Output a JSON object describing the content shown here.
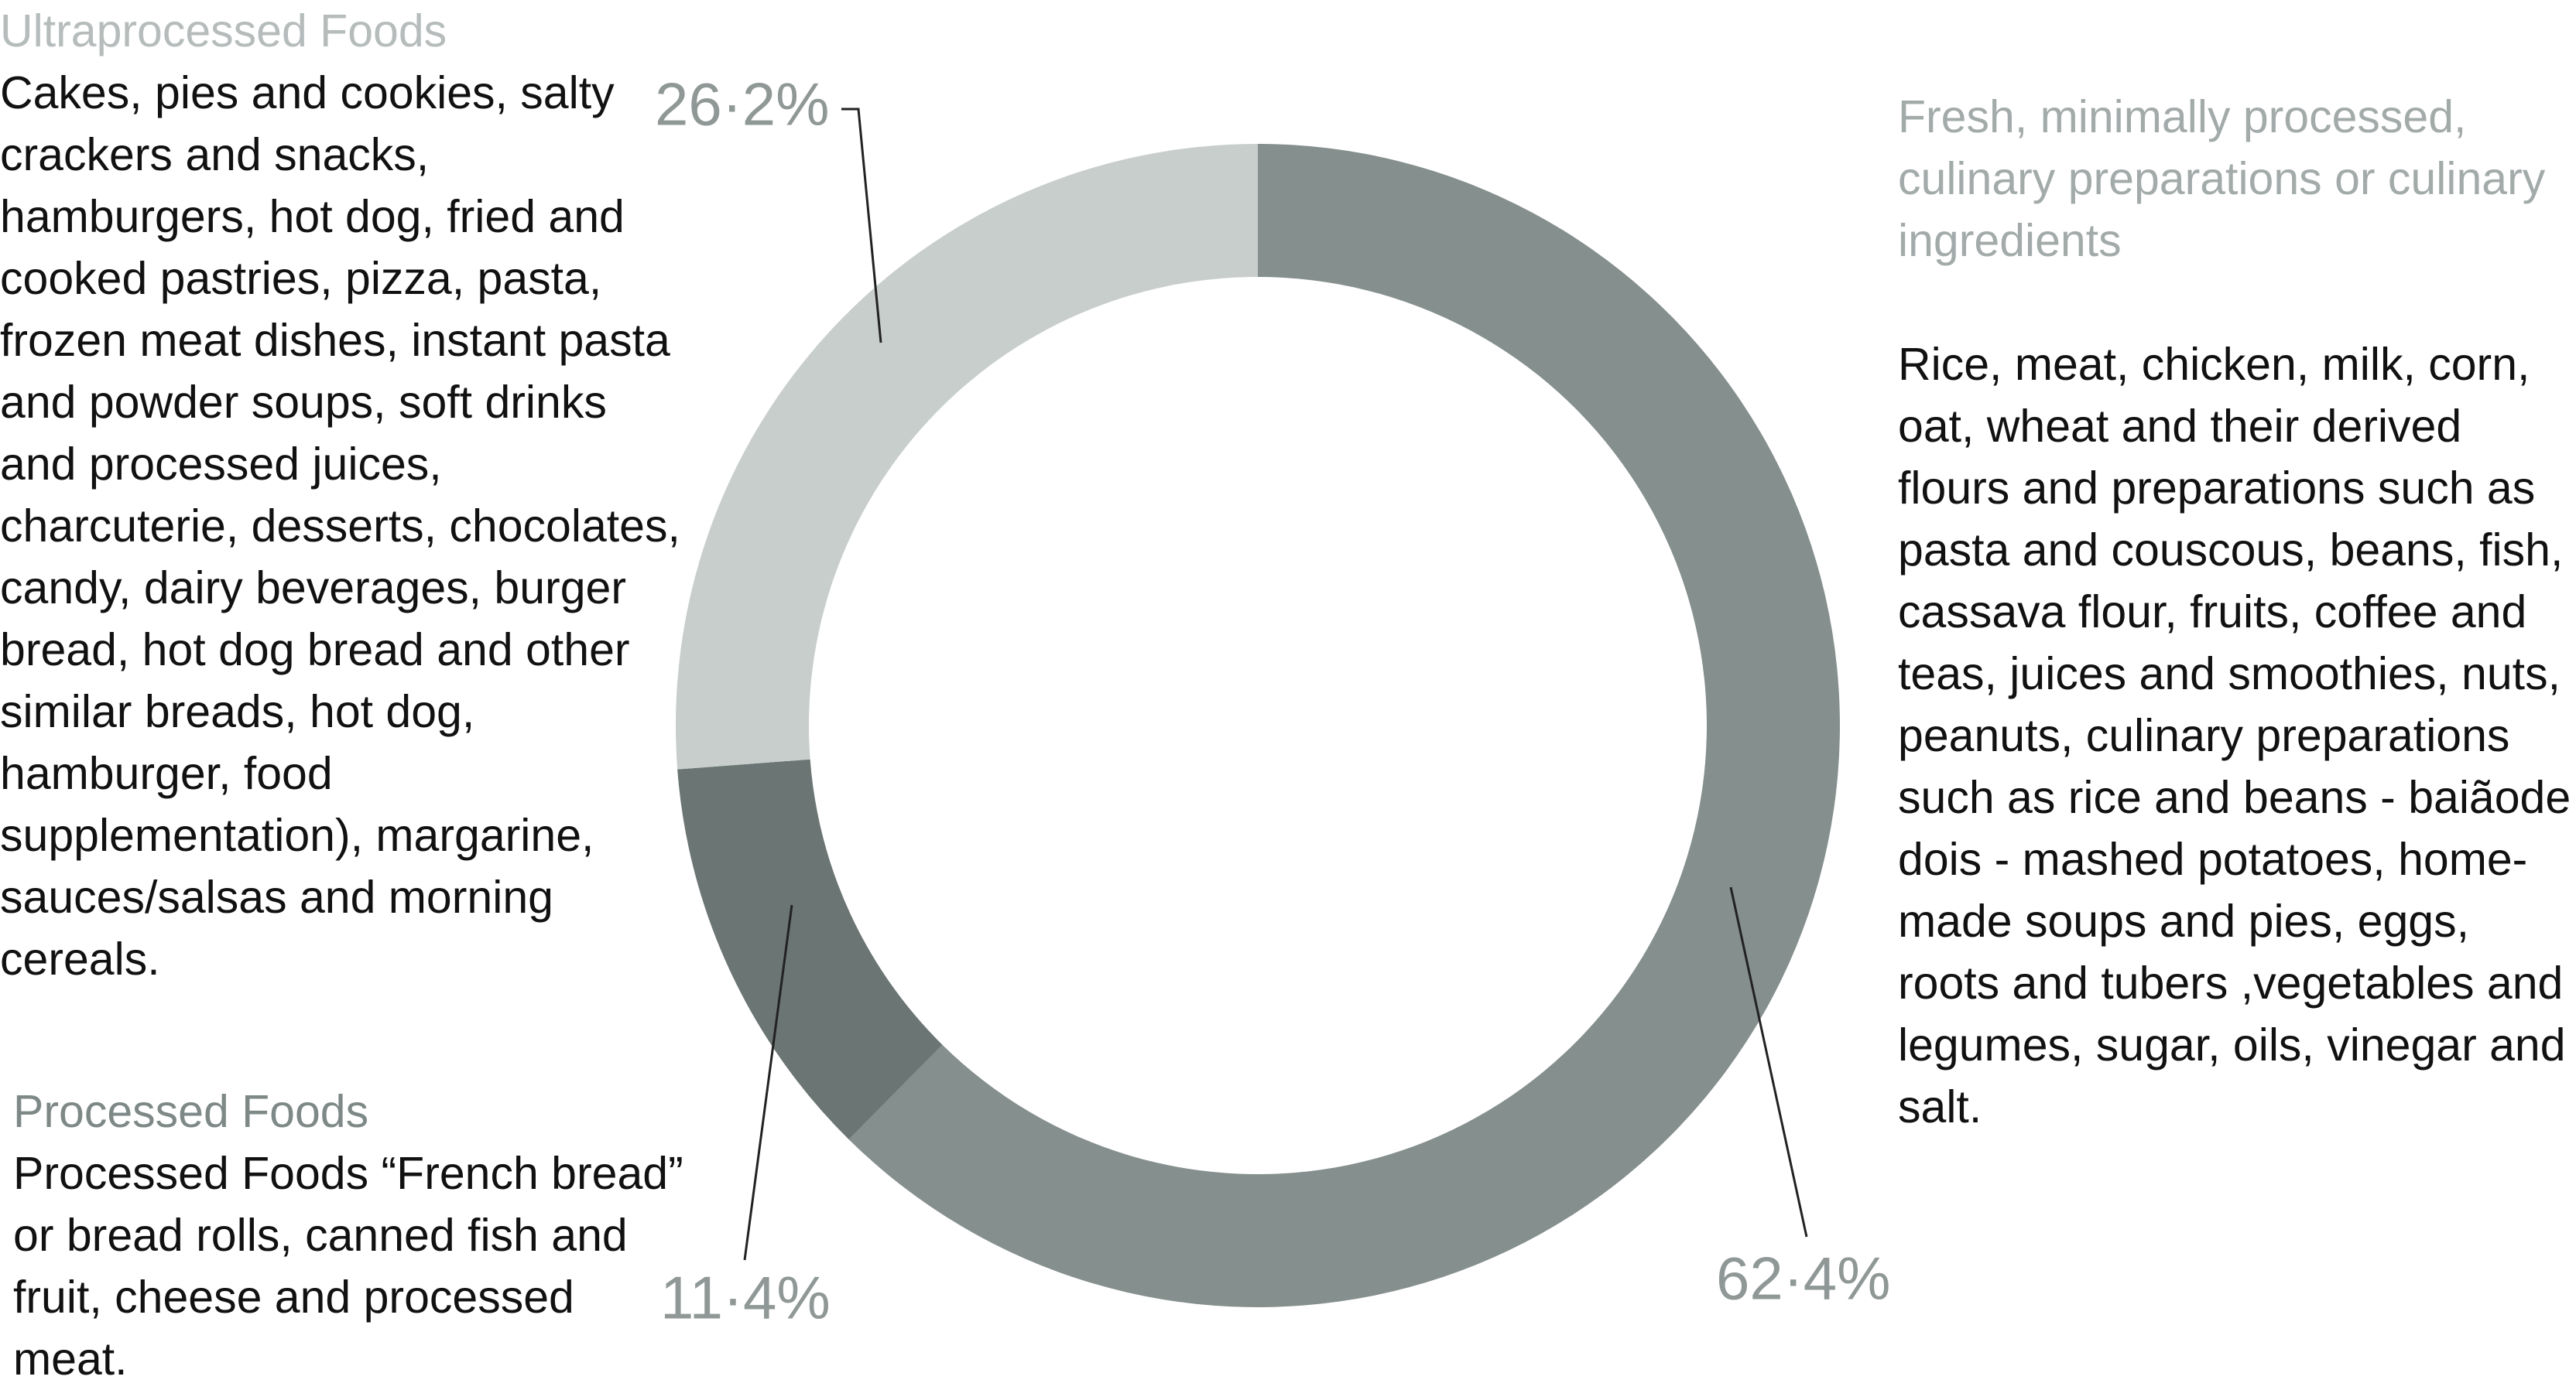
{
  "chart_data": {
    "type": "donut",
    "categories": [
      "Fresh, minimally processed, culinary preparations or culinary ingredients",
      "Processed Foods",
      "Ultraprocessed Foods"
    ],
    "descriptions": [
      "Rice, meat, chicken, milk, corn, oat, wheat and their derived flours and preparations such as pasta and couscous, beans, fish, cassava flour, fruits, coffee and teas, juices and smoothies, nuts, peanuts, culinary preparations such as rice and beans - baiãode dois - mashed potatoes, home-made soups and pies, eggs, roots and tubers ,vegetables and legumes, sugar, oils, vinegar and salt.",
      "Processed Foods “French bread” or bread rolls, canned fish and fruit, cheese and processed meat.",
      "Cakes, pies and cookies, salty crackers and snacks, hamburgers, hot dog, fried and cooked pastries, pizza, pasta, frozen meat dishes, instant pasta and powder soups, soft drinks and processed juices, charcuterie, desserts, chocolates, candy, dairy beverages, burger bread, hot dog bread and other similar breads, hot dog, hamburger, food supplementation), margarine, sauces/salsas and morning cereals."
    ],
    "values": [
      62.4,
      11.4,
      26.2
    ],
    "value_labels": [
      "62·4%",
      "11·4%",
      "26·2%"
    ],
    "colors": [
      "#858f8d",
      "#6b7573",
      "#c8cecc"
    ]
  }
}
